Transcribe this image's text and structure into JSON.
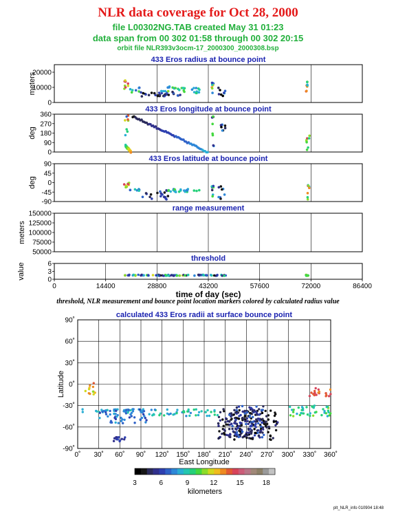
{
  "header": {
    "title": "NLR data coverage for Oct 28, 2000",
    "file_line": "file L00302NG.TAB created May 31 01:23",
    "span_line": "data span from 00 302 01:58 through 00 302 20:15",
    "orbit_line": "orbit file NLR393v3ocm-17_2000300_2000308.bsp"
  },
  "note": "threshold, NLR measurement and bounce point location markers colored by calculated radius value",
  "stamp": "plt_NLR_info 010904 18:48",
  "chart_data": [
    {
      "type": "scatter",
      "title": "433 Eros radius at bounce point",
      "ylabel": "meters",
      "ylim": [
        0,
        25000
      ],
      "yticks": [
        0,
        10000,
        20000
      ],
      "xlim": [
        0,
        86400
      ],
      "grid": true,
      "clusters": [
        {
          "x": [
            19600,
            21000
          ],
          "y": [
            9000,
            15000
          ],
          "v": [
            11,
            15
          ]
        },
        {
          "x": [
            21000,
            24000
          ],
          "y": [
            6000,
            10000
          ],
          "v": [
            6,
            10
          ]
        },
        {
          "x": [
            24000,
            36000
          ],
          "y": [
            4000,
            7000
          ],
          "v": [
            3,
            7
          ]
        },
        {
          "x": [
            30000,
            37000
          ],
          "y": [
            7000,
            11000
          ],
          "v": [
            7,
            11
          ]
        },
        {
          "x": [
            37000,
            41000
          ],
          "y": [
            6000,
            10000
          ],
          "v": [
            7,
            10
          ]
        },
        {
          "x": [
            44200,
            44800
          ],
          "y": [
            6000,
            14000
          ],
          "v": [
            4,
            14
          ]
        },
        {
          "x": [
            46000,
            48000
          ],
          "y": [
            4000,
            10000
          ],
          "v": [
            3,
            9
          ]
        },
        {
          "x": [
            70600,
            71400
          ],
          "y": [
            7000,
            15000
          ],
          "v": [
            8,
            15
          ]
        }
      ]
    },
    {
      "type": "scatter",
      "title": "433 Eros longitude at bounce point",
      "ylabel": "deg",
      "ylim": [
        0,
        360
      ],
      "yticks": [
        0,
        90,
        180,
        270,
        360
      ],
      "xlim": [
        0,
        86400
      ],
      "grid": true,
      "segments": [
        {
          "x0": 22000,
          "y0": 340,
          "x1": 43000,
          "y1": 0,
          "v0": 4,
          "v1": 8
        },
        {
          "x0": 20000,
          "y0": 60,
          "x1": 21500,
          "y1": 0,
          "v0": 9,
          "v1": 13
        }
      ],
      "clusters": [
        {
          "x": [
            19800,
            21000
          ],
          "y": [
            150,
            360
          ],
          "v": [
            6,
            14
          ]
        },
        {
          "x": [
            44200,
            44800
          ],
          "y": [
            0,
            360
          ],
          "v": [
            4,
            12
          ]
        },
        {
          "x": [
            46000,
            48000
          ],
          "y": [
            200,
            290
          ],
          "v": [
            3,
            8
          ]
        },
        {
          "x": [
            70600,
            71600
          ],
          "y": [
            0,
            180
          ],
          "v": [
            8,
            15
          ]
        }
      ]
    },
    {
      "type": "scatter",
      "title": "433 Eros latitude at bounce point",
      "ylabel": "deg",
      "ylim": [
        -90,
        90
      ],
      "yticks": [
        -90,
        -45,
        0,
        45,
        90
      ],
      "xlim": [
        0,
        86400
      ],
      "grid": true,
      "clusters": [
        {
          "x": [
            19600,
            21200
          ],
          "y": [
            -30,
            0
          ],
          "v": [
            10,
            15
          ]
        },
        {
          "x": [
            21000,
            24000
          ],
          "y": [
            -40,
            -30
          ],
          "v": [
            6,
            9
          ]
        },
        {
          "x": [
            24000,
            32000
          ],
          "y": [
            -80,
            -35
          ],
          "v": [
            3,
            7
          ]
        },
        {
          "x": [
            32000,
            41000
          ],
          "y": [
            -45,
            -30
          ],
          "v": [
            7,
            10
          ]
        },
        {
          "x": [
            44200,
            44800
          ],
          "y": [
            -80,
            0
          ],
          "v": [
            4,
            12
          ]
        },
        {
          "x": [
            46000,
            48000
          ],
          "y": [
            -80,
            -10
          ],
          "v": [
            3,
            8
          ]
        },
        {
          "x": [
            70600,
            71600
          ],
          "y": [
            -80,
            0
          ],
          "v": [
            8,
            15
          ]
        }
      ]
    },
    {
      "type": "scatter",
      "title": "range measurement",
      "ylabel": "meters",
      "ylim": [
        50000,
        150000
      ],
      "yticks": [
        50000,
        75000,
        100000,
        125000,
        150000
      ],
      "xlim": [
        0,
        86400
      ],
      "grid": true,
      "clusters": []
    },
    {
      "type": "scatter",
      "title": "threshold",
      "ylabel": "value",
      "ylim": [
        0,
        6
      ],
      "yticks": [
        0,
        3,
        6
      ],
      "xlim": [
        0,
        86400
      ],
      "xticks": [
        0,
        14400,
        28800,
        43200,
        57600,
        72000,
        86400
      ],
      "xlabel": "time of day (sec)",
      "grid": true,
      "clusters": [
        {
          "x": [
            19600,
            48500
          ],
          "y": [
            1.3,
            1.7
          ],
          "v": [
            3,
            12
          ]
        },
        {
          "x": [
            70600,
            71400
          ],
          "y": [
            1.3,
            1.7
          ],
          "v": [
            8,
            14
          ]
        }
      ]
    },
    {
      "type": "scatter",
      "title": "calculated 433 Eros radii at surface bounce point",
      "xlabel": "East Longitude",
      "ylabel": "Latitude",
      "xlim": [
        0,
        360
      ],
      "ylim": [
        -90,
        90
      ],
      "xticks": [
        "0˚",
        "30˚",
        "60˚",
        "90˚",
        "120˚",
        "150˚",
        "180˚",
        "210˚",
        "240˚",
        "270˚",
        "300˚",
        "330˚",
        "360˚"
      ],
      "yticks": [
        "-90˚",
        "-60˚",
        "-30˚",
        "0˚",
        "30˚",
        "60˚",
        "90˚"
      ],
      "grid": true,
      "clusters": [
        {
          "x": [
            5,
            80
          ],
          "y": [
            -40,
            -35
          ],
          "v": [
            7,
            9
          ]
        },
        {
          "x": [
            30,
            100
          ],
          "y": [
            -55,
            -35
          ],
          "v": [
            6,
            8
          ]
        },
        {
          "x": [
            50,
            75
          ],
          "y": [
            -80,
            -74
          ],
          "v": [
            5,
            6
          ]
        },
        {
          "x": [
            10,
            25
          ],
          "y": [
            -15,
            3
          ],
          "v": [
            11,
            14
          ]
        },
        {
          "x": [
            200,
            285
          ],
          "y": [
            -78,
            -35
          ],
          "v": [
            3,
            5
          ]
        },
        {
          "x": [
            215,
            265
          ],
          "y": [
            -75,
            -30
          ],
          "v": [
            4,
            7
          ]
        },
        {
          "x": [
            100,
            200
          ],
          "y": [
            -45,
            -35
          ],
          "v": [
            7,
            10
          ]
        },
        {
          "x": [
            300,
            360
          ],
          "y": [
            -45,
            -30
          ],
          "v": [
            8,
            11
          ]
        },
        {
          "x": [
            330,
            360
          ],
          "y": [
            -20,
            -5
          ],
          "v": [
            13,
            15
          ]
        }
      ],
      "colorbar": {
        "label": "kilometers",
        "ticks": [
          "3",
          "6",
          "9",
          "12",
          "15",
          "18"
        ],
        "range": [
          3,
          19
        ],
        "colors": [
          "#000000",
          "#161616",
          "#2c2c5c",
          "#30308c",
          "#2e40b0",
          "#2f62c8",
          "#2e88d8",
          "#2aaed4",
          "#24c6b0",
          "#26d07a",
          "#44d840",
          "#8cdc2a",
          "#d2d81e",
          "#f0bc1e",
          "#ee8a22",
          "#e25a34",
          "#d8445a",
          "#cc5c78",
          "#b87688",
          "#a08878",
          "#8c8068",
          "#9a9a9a",
          "#c2c2c2"
        ]
      }
    }
  ]
}
